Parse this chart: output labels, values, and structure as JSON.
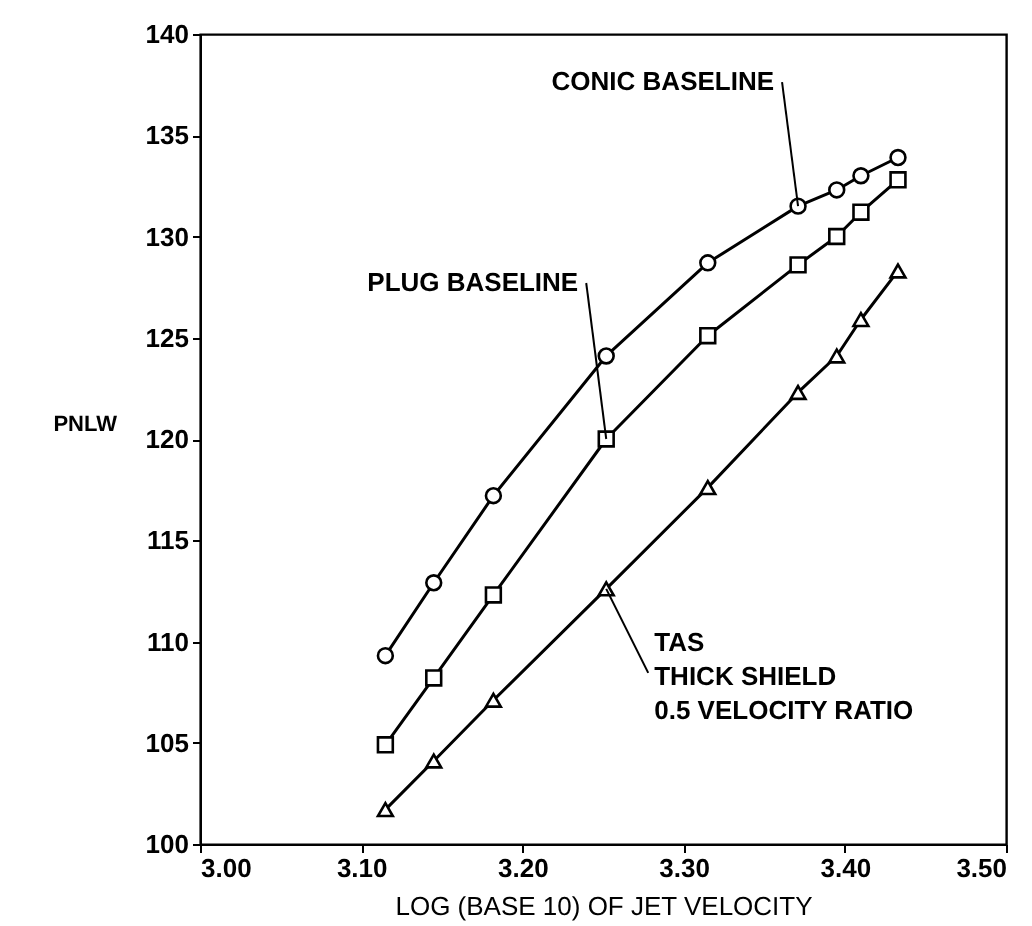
{
  "chart_data": {
    "type": "line",
    "xlabel": "LOG (BASE 10) OF JET VELOCITY",
    "ylabel": "PNLW",
    "x": [
      3.115,
      3.145,
      3.182,
      3.252,
      3.315,
      3.371,
      3.395,
      3.41,
      3.433
    ],
    "series": [
      {
        "name": "CONIC BASELINE",
        "color": "#000000",
        "marker": "circle",
        "values": [
          109.3,
          112.9,
          117.2,
          124.1,
          128.7,
          131.5,
          132.3,
          133.0,
          133.9
        ]
      },
      {
        "name": "PLUG BASELINE",
        "color": "#000000",
        "marker": "square",
        "values": [
          104.9,
          108.2,
          112.3,
          120.0,
          125.1,
          128.6,
          130.0,
          131.2,
          132.8
        ]
      },
      {
        "name": "TAS\nTHICK SHIELD\n0.5 VELOCITY RATIO",
        "color": "#000000",
        "marker": "triangle",
        "values": [
          101.7,
          104.1,
          107.1,
          112.6,
          117.6,
          122.3,
          124.1,
          125.9,
          128.3
        ]
      }
    ],
    "xlim": [
      3.0,
      3.5
    ],
    "xticks": [
      {
        "value": 3.0,
        "label": "3.00"
      },
      {
        "value": 3.1,
        "label": "3.10"
      },
      {
        "value": 3.2,
        "label": "3.20"
      },
      {
        "value": 3.3,
        "label": "3.30"
      },
      {
        "value": 3.4,
        "label": "3.40"
      },
      {
        "value": 3.5,
        "label": "3.50"
      }
    ],
    "ylim": [
      100,
      140
    ],
    "yticks": [
      100,
      105,
      110,
      115,
      120,
      125,
      130,
      135,
      140
    ],
    "grid": false,
    "line_style": "solid"
  }
}
